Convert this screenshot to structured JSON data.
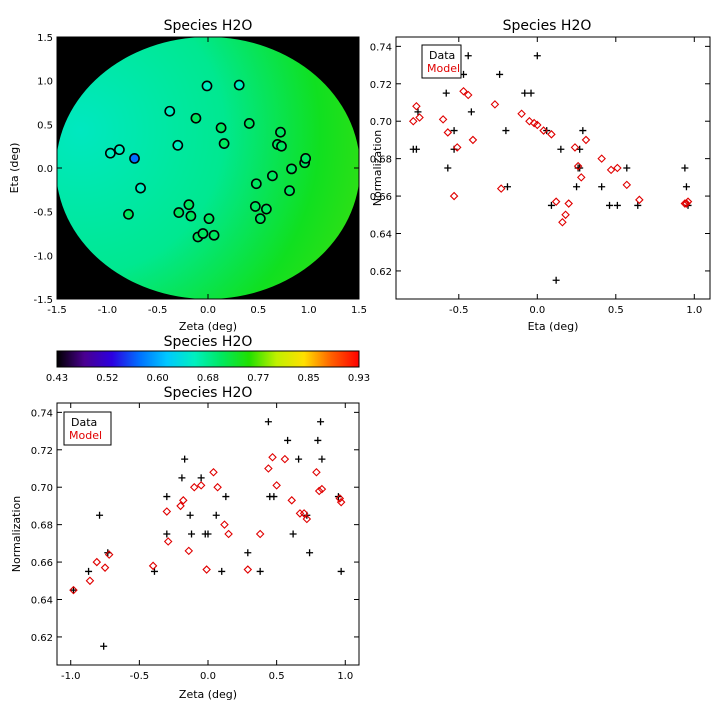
{
  "chart_data": [
    {
      "id": "map",
      "type": "scatter",
      "title": "Species H2O",
      "xlabel": "Zeta (deg)",
      "ylabel": "Eta (deg)",
      "xlim": [
        -1.5,
        1.5
      ],
      "ylim": [
        -1.5,
        1.5
      ],
      "xticks": [
        -1.5,
        -1.0,
        -0.5,
        0.0,
        0.5,
        1.0,
        1.5
      ],
      "yticks": [
        -1.5,
        -1.0,
        -0.5,
        0.0,
        0.5,
        1.0,
        1.5
      ],
      "tick_labels": [
        "-1.5",
        "-1.0",
        "-0.5",
        "0.0",
        "0.5",
        "1.0",
        "1.5"
      ],
      "background": "#000000",
      "field_colors": [
        "#00e8c0",
        "#00e890",
        "#10e020",
        "#40e010"
      ],
      "marker_stroke": "#000000",
      "points": [
        {
          "x": -0.97,
          "y": 0.17,
          "value": 0.645
        },
        {
          "x": -0.88,
          "y": 0.21,
          "value": 0.655
        },
        {
          "x": -0.73,
          "y": 0.11,
          "value": 0.57
        },
        {
          "x": -0.67,
          "y": -0.23,
          "value": 0.665
        },
        {
          "x": -0.79,
          "y": -0.53,
          "value": 0.685
        },
        {
          "x": -0.38,
          "y": 0.65,
          "value": 0.665
        },
        {
          "x": -0.3,
          "y": 0.26,
          "value": 0.675
        },
        {
          "x": -0.29,
          "y": -0.51,
          "value": 0.695
        },
        {
          "x": -0.19,
          "y": -0.42,
          "value": 0.7
        },
        {
          "x": -0.17,
          "y": -0.55,
          "value": 0.705
        },
        {
          "x": -0.12,
          "y": 0.57,
          "value": 0.68
        },
        {
          "x": -0.1,
          "y": -0.79,
          "value": 0.7
        },
        {
          "x": -0.05,
          "y": -0.75,
          "value": 0.7
        },
        {
          "x": -0.01,
          "y": 0.94,
          "value": 0.665
        },
        {
          "x": 0.01,
          "y": -0.58,
          "value": 0.705
        },
        {
          "x": 0.06,
          "y": -0.77,
          "value": 0.7
        },
        {
          "x": 0.13,
          "y": 0.46,
          "value": 0.685
        },
        {
          "x": 0.16,
          "y": 0.28,
          "value": 0.69
        },
        {
          "x": 0.31,
          "y": 0.95,
          "value": 0.675
        },
        {
          "x": 0.41,
          "y": 0.51,
          "value": 0.685
        },
        {
          "x": 0.48,
          "y": -0.18,
          "value": 0.715
        },
        {
          "x": 0.47,
          "y": -0.44,
          "value": 0.715
        },
        {
          "x": 0.52,
          "y": -0.58,
          "value": 0.72
        },
        {
          "x": 0.58,
          "y": -0.47,
          "value": 0.72
        },
        {
          "x": 0.64,
          "y": -0.09,
          "value": 0.71
        },
        {
          "x": 0.69,
          "y": 0.27,
          "value": 0.7
        },
        {
          "x": 0.73,
          "y": 0.25,
          "value": 0.7
        },
        {
          "x": 0.72,
          "y": 0.41,
          "value": 0.695
        },
        {
          "x": 0.81,
          "y": -0.26,
          "value": 0.715
        },
        {
          "x": 0.83,
          "y": -0.01,
          "value": 0.71
        },
        {
          "x": 0.96,
          "y": 0.06,
          "value": 0.705
        },
        {
          "x": 0.97,
          "y": 0.11,
          "value": 0.705
        }
      ]
    },
    {
      "id": "colorbar",
      "type": "heatmap",
      "title": "Species H2O",
      "range": [
        0.43,
        0.93
      ],
      "tick_labels": [
        "0.43",
        "0.52",
        "0.60",
        "0.68",
        "0.77",
        "0.85",
        "0.93"
      ],
      "colors": [
        "#000000",
        "#4a0090",
        "#2c00e0",
        "#0070ff",
        "#00c8ff",
        "#00f0c0",
        "#00e860",
        "#20e000",
        "#c0f000",
        "#ffe000",
        "#ff6000",
        "#ff0000"
      ]
    },
    {
      "id": "eta",
      "type": "scatter",
      "title": "Species H2O",
      "xlabel": "Eta (deg)",
      "ylabel": "Normalization",
      "xlim": [
        -0.9,
        1.1
      ],
      "ylim": [
        0.605,
        0.745
      ],
      "xticks": [
        -0.5,
        0.0,
        0.5,
        1.0
      ],
      "xtick_labels": [
        "-0.5",
        "0.0",
        "0.5",
        "1.0"
      ],
      "yticks": [
        0.62,
        0.64,
        0.66,
        0.68,
        0.7,
        0.72,
        0.74
      ],
      "ytick_labels": [
        "0.62",
        "0.64",
        "0.66",
        "0.68",
        "0.70",
        "0.72",
        "0.74"
      ],
      "legend": [
        "Data",
        "Model"
      ],
      "legend_position": "top-left",
      "series": [
        {
          "name": "Data",
          "marker": "plus",
          "color": "#000000",
          "x": [
            -0.79,
            -0.77,
            -0.76,
            -0.57,
            -0.58,
            -0.53,
            -0.53,
            -0.47,
            -0.44,
            -0.42,
            -0.24,
            -0.19,
            -0.2,
            -0.08,
            -0.04,
            0.0,
            0.06,
            0.09,
            0.12,
            0.15,
            0.25,
            0.26,
            0.27,
            0.27,
            0.29,
            0.41,
            0.46,
            0.51,
            0.57,
            0.64,
            0.94,
            0.95,
            0.96
          ],
          "y": [
            0.685,
            0.685,
            0.705,
            0.675,
            0.715,
            0.695,
            0.685,
            0.725,
            0.735,
            0.705,
            0.725,
            0.665,
            0.695,
            0.715,
            0.715,
            0.735,
            0.695,
            0.655,
            0.615,
            0.685,
            0.665,
            0.675,
            0.675,
            0.685,
            0.695,
            0.665,
            0.655,
            0.655,
            0.675,
            0.655,
            0.675,
            0.665,
            0.655
          ]
        },
        {
          "name": "Model",
          "marker": "diamond",
          "color": "#e00000",
          "x": [
            -0.79,
            -0.77,
            -0.75,
            -0.6,
            -0.57,
            -0.53,
            -0.51,
            -0.47,
            -0.44,
            -0.41,
            -0.27,
            -0.23,
            -0.1,
            -0.05,
            -0.02,
            0.0,
            0.04,
            0.09,
            0.12,
            0.16,
            0.18,
            0.2,
            0.24,
            0.26,
            0.28,
            0.31,
            0.41,
            0.47,
            0.51,
            0.57,
            0.65,
            0.94,
            0.95,
            0.96
          ],
          "y": [
            0.7,
            0.708,
            0.702,
            0.701,
            0.694,
            0.66,
            0.686,
            0.716,
            0.714,
            0.69,
            0.709,
            0.664,
            0.704,
            0.7,
            0.699,
            0.698,
            0.695,
            0.693,
            0.657,
            0.646,
            0.65,
            0.656,
            0.686,
            0.676,
            0.67,
            0.69,
            0.68,
            0.674,
            0.675,
            0.666,
            0.658,
            0.656,
            0.656,
            0.657
          ]
        }
      ]
    },
    {
      "id": "zeta",
      "type": "scatter",
      "title": "Species H2O",
      "xlabel": "Zeta (deg)",
      "ylabel": "Normalization",
      "xlim": [
        -1.1,
        1.1
      ],
      "ylim": [
        0.605,
        0.745
      ],
      "xticks": [
        -1.0,
        -0.5,
        0.0,
        0.5,
        1.0
      ],
      "xtick_labels": [
        "-1.0",
        "-0.5",
        "0.0",
        "0.5",
        "1.0"
      ],
      "yticks": [
        0.62,
        0.64,
        0.66,
        0.68,
        0.7,
        0.72,
        0.74
      ],
      "ytick_labels": [
        "0.62",
        "0.64",
        "0.66",
        "0.68",
        "0.70",
        "0.72",
        "0.74"
      ],
      "legend": [
        "Data",
        "Model"
      ],
      "legend_position": "top-left",
      "series": [
        {
          "name": "Data",
          "marker": "plus",
          "color": "#000000",
          "x": [
            -0.98,
            -0.87,
            -0.79,
            -0.73,
            -0.76,
            -0.39,
            -0.3,
            -0.3,
            -0.19,
            -0.17,
            -0.13,
            -0.12,
            -0.05,
            -0.02,
            0.0,
            0.06,
            0.1,
            0.13,
            0.29,
            0.38,
            0.44,
            0.45,
            0.48,
            0.58,
            0.62,
            0.66,
            0.72,
            0.74,
            0.8,
            0.82,
            0.83,
            0.95,
            0.97
          ],
          "y": [
            0.645,
            0.655,
            0.685,
            0.665,
            0.615,
            0.655,
            0.695,
            0.675,
            0.705,
            0.715,
            0.685,
            0.675,
            0.705,
            0.675,
            0.675,
            0.685,
            0.655,
            0.695,
            0.665,
            0.655,
            0.735,
            0.695,
            0.695,
            0.725,
            0.675,
            0.715,
            0.685,
            0.665,
            0.725,
            0.735,
            0.715,
            0.695,
            0.655
          ]
        },
        {
          "name": "Model",
          "marker": "diamond",
          "color": "#e00000",
          "x": [
            -0.98,
            -0.86,
            -0.81,
            -0.75,
            -0.72,
            -0.4,
            -0.3,
            -0.29,
            -0.2,
            -0.18,
            -0.14,
            -0.1,
            -0.05,
            -0.01,
            0.04,
            0.07,
            0.12,
            0.15,
            0.29,
            0.38,
            0.44,
            0.47,
            0.5,
            0.56,
            0.61,
            0.67,
            0.7,
            0.72,
            0.79,
            0.81,
            0.83,
            0.96,
            0.97
          ],
          "y": [
            0.645,
            0.65,
            0.66,
            0.657,
            0.664,
            0.658,
            0.687,
            0.671,
            0.69,
            0.693,
            0.666,
            0.7,
            0.701,
            0.656,
            0.708,
            0.7,
            0.68,
            0.675,
            0.656,
            0.675,
            0.71,
            0.716,
            0.701,
            0.715,
            0.693,
            0.686,
            0.686,
            0.683,
            0.708,
            0.698,
            0.699,
            0.694,
            0.692
          ]
        }
      ]
    }
  ]
}
